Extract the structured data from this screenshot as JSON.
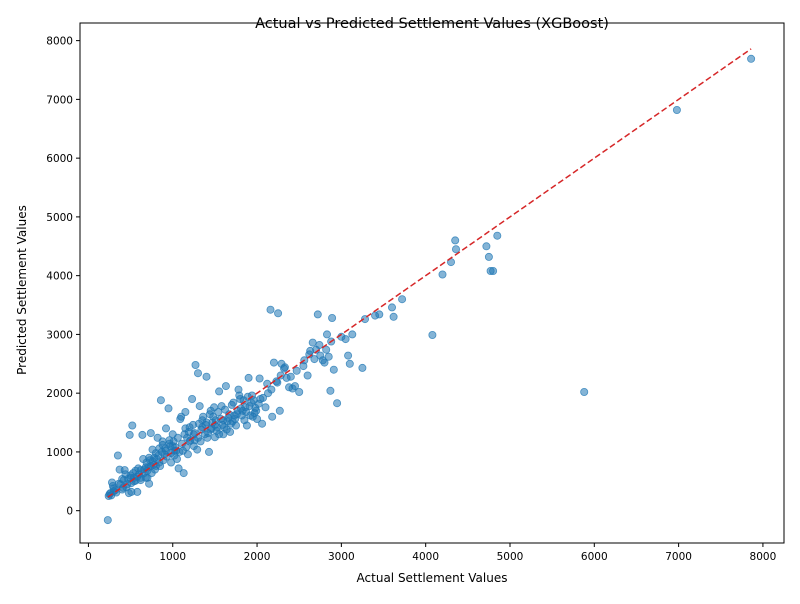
{
  "chart_data": {
    "type": "scatter",
    "title": "Actual vs Predicted Settlement Values (XGBoost)",
    "xlabel": "Actual Settlement Values",
    "ylabel": "Predicted Settlement Values",
    "xlim": [
      -100,
      8250
    ],
    "ylim": [
      -550,
      8300
    ],
    "xticks": [
      0,
      1000,
      2000,
      3000,
      4000,
      5000,
      6000,
      7000,
      8000
    ],
    "yticks": [
      0,
      1000,
      2000,
      3000,
      4000,
      5000,
      6000,
      7000,
      8000
    ],
    "grid": false,
    "colors": {
      "points": "#1f77b4",
      "reference_line": "#d62728"
    },
    "reference_line": {
      "style": "dashed",
      "from": [
        230,
        230
      ],
      "to": [
        7860,
        7860
      ]
    },
    "points": [
      [
        230,
        -160
      ],
      [
        240,
        250
      ],
      [
        250,
        280
      ],
      [
        260,
        300
      ],
      [
        270,
        260
      ],
      [
        280,
        480
      ],
      [
        290,
        420
      ],
      [
        300,
        330
      ],
      [
        320,
        350
      ],
      [
        350,
        940
      ],
      [
        370,
        700
      ],
      [
        400,
        360
      ],
      [
        420,
        520
      ],
      [
        430,
        690
      ],
      [
        460,
        450
      ],
      [
        480,
        300
      ],
      [
        490,
        1290
      ],
      [
        500,
        600
      ],
      [
        510,
        320
      ],
      [
        520,
        1450
      ],
      [
        540,
        560
      ],
      [
        560,
        680
      ],
      [
        580,
        320
      ],
      [
        600,
        620
      ],
      [
        620,
        520
      ],
      [
        640,
        1290
      ],
      [
        650,
        880
      ],
      [
        680,
        740
      ],
      [
        700,
        560
      ],
      [
        720,
        460
      ],
      [
        740,
        1320
      ],
      [
        760,
        1040
      ],
      [
        780,
        900
      ],
      [
        800,
        760
      ],
      [
        820,
        1240
      ],
      [
        840,
        820
      ],
      [
        860,
        1880
      ],
      [
        880,
        1180
      ],
      [
        900,
        960
      ],
      [
        920,
        1400
      ],
      [
        950,
        1740
      ],
      [
        970,
        1100
      ],
      [
        1000,
        1300
      ],
      [
        1020,
        1020
      ],
      [
        1050,
        880
      ],
      [
        1070,
        720
      ],
      [
        1090,
        1560
      ],
      [
        1100,
        1600
      ],
      [
        1130,
        640
      ],
      [
        1150,
        1680
      ],
      [
        1170,
        1240
      ],
      [
        1200,
        1420
      ],
      [
        1230,
        1900
      ],
      [
        1250,
        1100
      ],
      [
        1270,
        2480
      ],
      [
        1300,
        2340
      ],
      [
        1320,
        1780
      ],
      [
        1350,
        1540
      ],
      [
        1380,
        1300
      ],
      [
        1400,
        2280
      ],
      [
        1430,
        1000
      ],
      [
        1450,
        1700
      ],
      [
        1480,
        1600
      ],
      [
        1500,
        1250
      ],
      [
        1530,
        1420
      ],
      [
        1550,
        2030
      ],
      [
        1580,
        1780
      ],
      [
        1600,
        1300
      ],
      [
        1630,
        2120
      ],
      [
        1650,
        1520
      ],
      [
        1680,
        1340
      ],
      [
        1700,
        1800
      ],
      [
        1730,
        1620
      ],
      [
        1750,
        1450
      ],
      [
        1780,
        2060
      ],
      [
        1800,
        1900
      ],
      [
        1830,
        1700
      ],
      [
        1850,
        1540
      ],
      [
        1880,
        1450
      ],
      [
        1900,
        2260
      ],
      [
        1930,
        1840
      ],
      [
        1950,
        1600
      ],
      [
        1980,
        1750
      ],
      [
        2000,
        1560
      ],
      [
        2030,
        2250
      ],
      [
        2060,
        1480
      ],
      [
        2100,
        1760
      ],
      [
        2130,
        2000
      ],
      [
        2160,
        3420
      ],
      [
        2180,
        1600
      ],
      [
        2200,
        2520
      ],
      [
        2230,
        2200
      ],
      [
        2250,
        3360
      ],
      [
        2270,
        1700
      ],
      [
        2290,
        2500
      ],
      [
        2320,
        2420
      ],
      [
        2350,
        2260
      ],
      [
        2380,
        2100
      ],
      [
        2420,
        2080
      ],
      [
        2450,
        2120
      ],
      [
        2500,
        2020
      ],
      [
        2550,
        2460
      ],
      [
        2600,
        2300
      ],
      [
        2630,
        2720
      ],
      [
        2660,
        2860
      ],
      [
        2700,
        2740
      ],
      [
        2720,
        3340
      ],
      [
        2750,
        2640
      ],
      [
        2780,
        2560
      ],
      [
        2800,
        2520
      ],
      [
        2830,
        3000
      ],
      [
        2850,
        2620
      ],
      [
        2870,
        2040
      ],
      [
        2890,
        3280
      ],
      [
        2910,
        2400
      ],
      [
        2950,
        1830
      ],
      [
        3000,
        2960
      ],
      [
        3050,
        2920
      ],
      [
        3080,
        2640
      ],
      [
        3100,
        2500
      ],
      [
        3130,
        3000
      ],
      [
        3250,
        2430
      ],
      [
        3280,
        3260
      ],
      [
        3400,
        3320
      ],
      [
        3450,
        3340
      ],
      [
        3600,
        3460
      ],
      [
        3620,
        3300
      ],
      [
        3720,
        3600
      ],
      [
        4080,
        2990
      ],
      [
        4200,
        4020
      ],
      [
        4300,
        4230
      ],
      [
        4350,
        4600
      ],
      [
        4360,
        4450
      ],
      [
        4720,
        4500
      ],
      [
        4750,
        4320
      ],
      [
        4770,
        4080
      ],
      [
        4800,
        4080
      ],
      [
        4850,
        4680
      ],
      [
        5880,
        2020
      ],
      [
        6980,
        6820
      ],
      [
        7860,
        7690
      ],
      [
        300,
        380
      ],
      [
        330,
        310
      ],
      [
        380,
        450
      ],
      [
        410,
        390
      ],
      [
        440,
        620
      ],
      [
        470,
        540
      ],
      [
        510,
        470
      ],
      [
        530,
        640
      ],
      [
        560,
        510
      ],
      [
        590,
        720
      ],
      [
        620,
        690
      ],
      [
        660,
        640
      ],
      [
        690,
        820
      ],
      [
        710,
        740
      ],
      [
        730,
        860
      ],
      [
        750,
        640
      ],
      [
        770,
        780
      ],
      [
        790,
        700
      ],
      [
        810,
        880
      ],
      [
        830,
        940
      ],
      [
        850,
        760
      ],
      [
        870,
        1000
      ],
      [
        890,
        860
      ],
      [
        910,
        1060
      ],
      [
        930,
        920
      ],
      [
        960,
        1140
      ],
      [
        980,
        980
      ],
      [
        1010,
        1180
      ],
      [
        1030,
        1080
      ],
      [
        1060,
        1240
      ],
      [
        1080,
        1000
      ],
      [
        1110,
        1140
      ],
      [
        1140,
        1300
      ],
      [
        1160,
        1080
      ],
      [
        1190,
        1340
      ],
      [
        1210,
        1200
      ],
      [
        1240,
        1460
      ],
      [
        1260,
        1320
      ],
      [
        1290,
        1040
      ],
      [
        1310,
        1480
      ],
      [
        1340,
        1380
      ],
      [
        1360,
        1600
      ],
      [
        1390,
        1460
      ],
      [
        1410,
        1240
      ],
      [
        1440,
        1640
      ],
      [
        1470,
        1500
      ],
      [
        1490,
        1760
      ],
      [
        1520,
        1360
      ],
      [
        1540,
        1680
      ],
      [
        1570,
        1560
      ],
      [
        1590,
        1460
      ],
      [
        1620,
        1720
      ],
      [
        1640,
        1380
      ],
      [
        1670,
        1640
      ],
      [
        1690,
        1480
      ],
      [
        1720,
        1840
      ],
      [
        1740,
        1560
      ],
      [
        1770,
        1700
      ],
      [
        1790,
        1960
      ],
      [
        1820,
        1620
      ],
      [
        1860,
        1760
      ],
      [
        1890,
        1940
      ],
      [
        1920,
        1620
      ],
      [
        1960,
        1880
      ],
      [
        1990,
        1700
      ],
      [
        2020,
        1820
      ],
      [
        2070,
        1920
      ],
      [
        2120,
        2160
      ],
      [
        2170,
        2060
      ],
      [
        2240,
        2180
      ],
      [
        2280,
        2300
      ],
      [
        2330,
        2440
      ],
      [
        2400,
        2280
      ],
      [
        2470,
        2380
      ],
      [
        2560,
        2560
      ],
      [
        2620,
        2660
      ],
      [
        2680,
        2580
      ],
      [
        2740,
        2820
      ],
      [
        2820,
        2740
      ],
      [
        2880,
        2880
      ],
      [
        980,
        820
      ],
      [
        1020,
        940
      ],
      [
        1120,
        1020
      ],
      [
        1180,
        960
      ],
      [
        1260,
        1200
      ],
      [
        1330,
        1180
      ],
      [
        1420,
        1320
      ],
      [
        1460,
        1400
      ],
      [
        1510,
        1540
      ],
      [
        1610,
        1420
      ],
      [
        1660,
        1580
      ],
      [
        1710,
        1520
      ],
      [
        1760,
        1640
      ],
      [
        1810,
        1740
      ],
      [
        1840,
        1880
      ],
      [
        1870,
        1680
      ],
      [
        1910,
        1780
      ],
      [
        1940,
        1960
      ],
      [
        1970,
        1660
      ],
      [
        2040,
        1900
      ],
      [
        680,
        560
      ],
      [
        720,
        900
      ],
      [
        760,
        840
      ],
      [
        800,
        980
      ],
      [
        840,
        1060
      ],
      [
        880,
        1120
      ],
      [
        920,
        1020
      ],
      [
        960,
        1200
      ],
      [
        1000,
        1100
      ],
      [
        1040,
        1020
      ],
      [
        360,
        460
      ],
      [
        400,
        540
      ],
      [
        450,
        400
      ],
      [
        500,
        560
      ],
      [
        540,
        500
      ],
      [
        580,
        580
      ],
      [
        620,
        560
      ],
      [
        660,
        700
      ],
      [
        700,
        680
      ],
      [
        740,
        760
      ],
      [
        1150,
        1400
      ],
      [
        1200,
        1180
      ],
      [
        1250,
        1300
      ],
      [
        1300,
        1240
      ],
      [
        1350,
        1420
      ],
      [
        1400,
        1500
      ],
      [
        1450,
        1380
      ],
      [
        1500,
        1460
      ],
      [
        1550,
        1300
      ],
      [
        1600,
        1540
      ]
    ]
  }
}
